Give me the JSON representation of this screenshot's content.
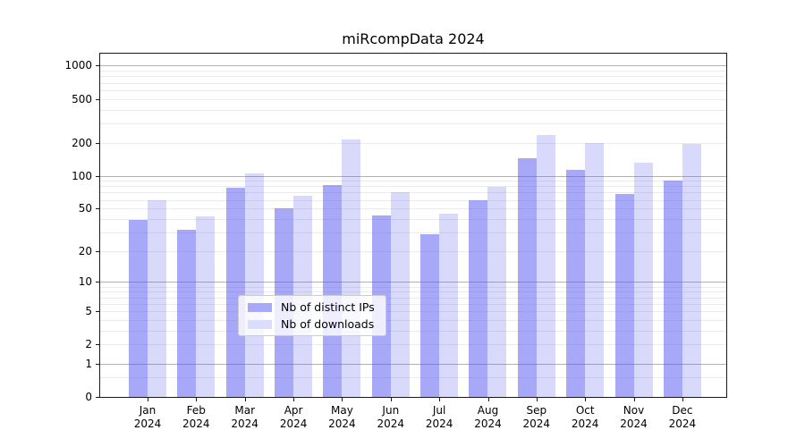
{
  "chart_data": {
    "type": "bar",
    "title": "miRcompData 2024",
    "categories": [
      "Jan",
      "Feb",
      "Mar",
      "Apr",
      "May",
      "Jun",
      "Jul",
      "Aug",
      "Sep",
      "Oct",
      "Nov",
      "Dec"
    ],
    "x_year_label": "2024",
    "series": [
      {
        "name": "Nb of distinct IPs",
        "color": "rgba(82,82,242,0.5)",
        "legend_swatch_color": "#a9a9f8",
        "values": [
          39,
          32,
          77,
          50,
          82,
          43,
          29,
          60,
          145,
          114,
          68,
          91
        ]
      },
      {
        "name": "Nb of downloads",
        "color": "rgba(82,82,242,0.22)",
        "legend_swatch_color": "#dcdcfc",
        "values": [
          59,
          42,
          104,
          65,
          215,
          70,
          45,
          79,
          237,
          200,
          132,
          196
        ]
      }
    ],
    "y_ticks": [
      0,
      1,
      2,
      5,
      10,
      20,
      50,
      100,
      200,
      500,
      1000
    ],
    "y_major_gridlines": [
      1,
      10,
      100,
      1000
    ],
    "y_minor_gridlines": [
      0.5,
      2,
      3,
      4,
      5,
      6,
      7,
      8,
      9,
      20,
      30,
      40,
      50,
      60,
      70,
      80,
      90,
      200,
      300,
      400,
      500,
      600,
      700,
      800,
      900
    ],
    "scale": "log1p",
    "ylim": [
      0,
      1285
    ],
    "grid": true,
    "legend_position": "lower center",
    "colors": {
      "major_grid": "#b2b2b2",
      "minor_grid": "#ebebeb",
      "axis": "#1a1a1a",
      "background": "#ffffff"
    }
  }
}
